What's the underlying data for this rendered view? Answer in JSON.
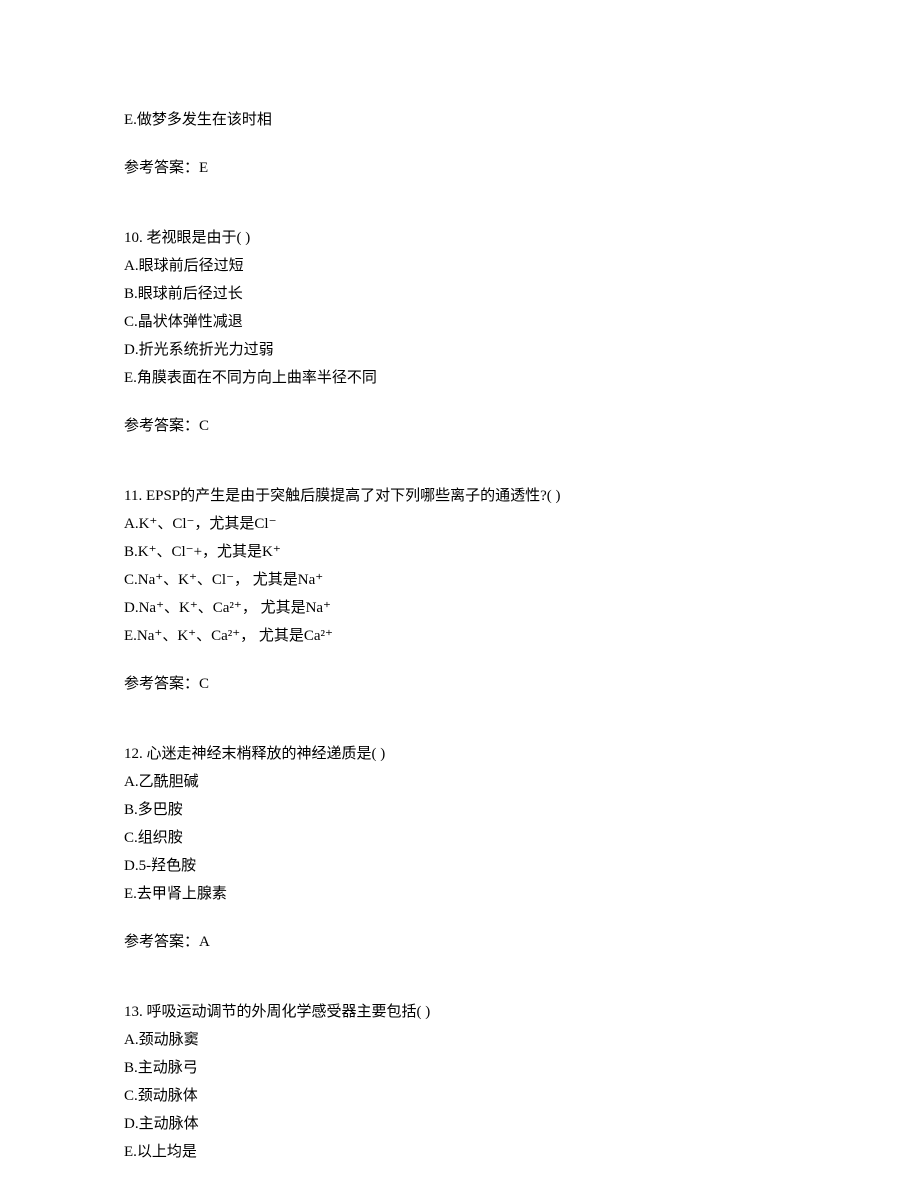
{
  "q9_partial": {
    "optionE": "E.做梦多发生在该时相",
    "answerLabel": "参考答案：E"
  },
  "q10": {
    "stem": "10.  老视眼是由于(   )",
    "optionA": "A.眼球前后径过短",
    "optionB": "B.眼球前后径过长",
    "optionC": "C.晶状体弹性减退",
    "optionD": "D.折光系统折光力过弱",
    "optionE": "E.角膜表面在不同方向上曲率半径不同",
    "answerLabel": "参考答案：C"
  },
  "q11": {
    "stem": "11.  EPSP的产生是由于突触后膜提高了对下列哪些离子的通透性?(   )",
    "optionA": "A.K⁺、Cl⁻，尤其是Cl⁻",
    "optionB": "B.K⁺、Cl⁻+，尤其是K⁺",
    "optionC": "C.Na⁺、K⁺、Cl⁻， 尤其是Na⁺",
    "optionD": "D.Na⁺、K⁺、Ca²⁺， 尤其是Na⁺",
    "optionE": "E.Na⁺、K⁺、Ca²⁺， 尤其是Ca²⁺",
    "answerLabel": "参考答案：C"
  },
  "q12": {
    "stem": "12.  心迷走神经末梢释放的神经递质是(   )",
    "optionA": "A.乙酰胆碱",
    "optionB": "B.多巴胺",
    "optionC": "C.组织胺",
    "optionD": "D.5-羟色胺",
    "optionE": "E.去甲肾上腺素",
    "answerLabel": "参考答案：A"
  },
  "q13": {
    "stem": "13.  呼吸运动调节的外周化学感受器主要包括(   )",
    "optionA": "A.颈动脉窦",
    "optionB": "B.主动脉弓",
    "optionC": "C.颈动脉体",
    "optionD": "D.主动脉体",
    "optionE": "E.以上均是"
  }
}
